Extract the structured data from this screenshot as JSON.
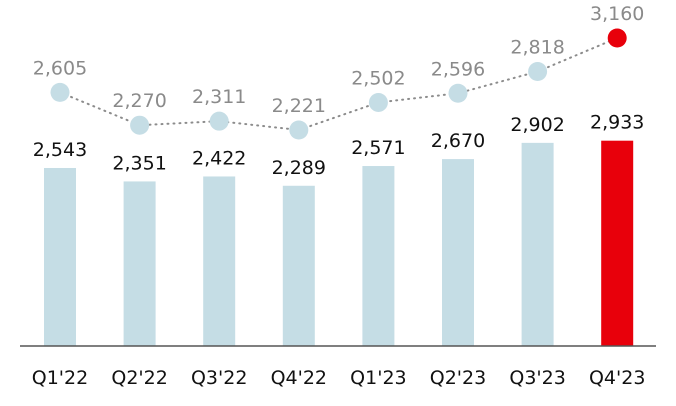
{
  "chart_data": {
    "type": "bar",
    "categories": [
      "Q1'22",
      "Q2'22",
      "Q3'22",
      "Q4'22",
      "Q1'23",
      "Q2'23",
      "Q3'23",
      "Q4'23"
    ],
    "series": [
      {
        "type": "bar",
        "values": [
          2543,
          2351,
          2422,
          2289,
          2571,
          2670,
          2902,
          2933
        ],
        "labels": [
          "2,543",
          "2,351",
          "2,422",
          "2,289",
          "2,571",
          "2,670",
          "2,902",
          "2,933"
        ]
      },
      {
        "type": "line",
        "style": "dotted with circular markers",
        "values": [
          2605,
          2270,
          2311,
          2221,
          2502,
          2596,
          2818,
          3160
        ],
        "labels": [
          "2,605",
          "2,270",
          "2,311",
          "2,221",
          "2,502",
          "2,596",
          "2,818",
          "3,160"
        ]
      }
    ],
    "title": "",
    "xlabel": "",
    "ylabel": "",
    "y_axis_visible": false,
    "ylim": [
      0,
      3200
    ],
    "grid": false,
    "legend": "none",
    "colors": {
      "bar": "#c5dde5",
      "bar_highlight": "#e8000b",
      "marker": "#c5dde5",
      "marker_highlight": "#e8000b",
      "connector": "#8c8c8c",
      "axis": "#555555",
      "bar_label": "#111111",
      "marker_label": "#8a8a8a"
    }
  }
}
